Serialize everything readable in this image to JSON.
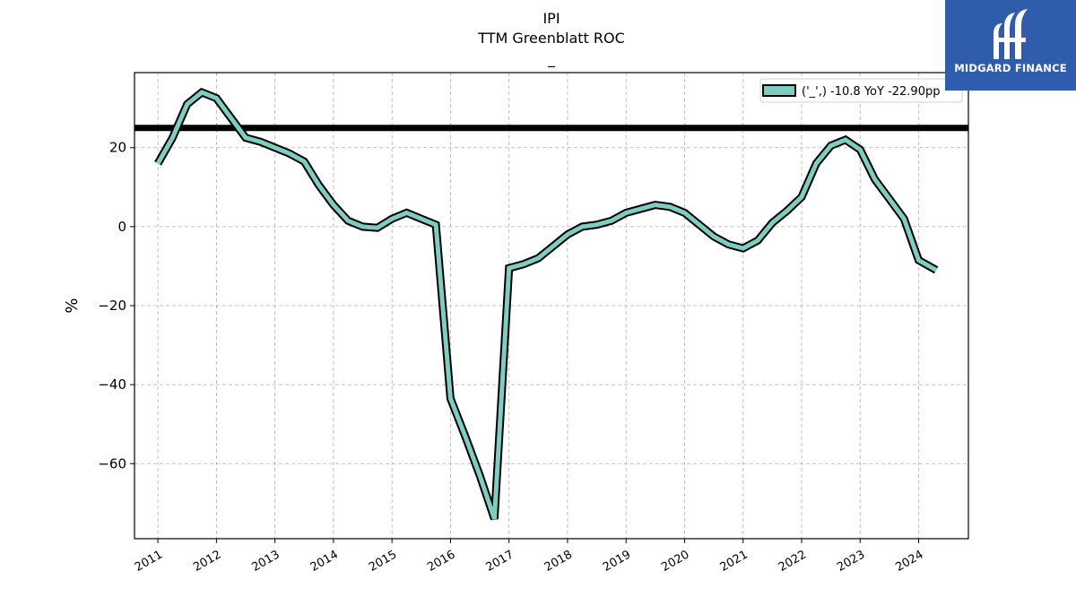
{
  "chart_data": {
    "type": "line",
    "title_lines": [
      "IPI",
      "TTM Greenblatt ROC",
      "_"
    ],
    "xlabel": "",
    "ylabel": "%",
    "xlim": [
      2010.6,
      2024.85
    ],
    "ylim": [
      -79,
      39
    ],
    "yticks": [
      20,
      0,
      -20,
      -40,
      -60
    ],
    "ytick_labels": [
      "20",
      "0",
      "−20",
      "−40",
      "−60"
    ],
    "xticks": [
      2011,
      2012,
      2013,
      2014,
      2015,
      2016,
      2017,
      2018,
      2019,
      2020,
      2021,
      2022,
      2023,
      2024
    ],
    "xtick_labels": [
      "2011",
      "2012",
      "2013",
      "2014",
      "2015",
      "2016",
      "2017",
      "2018",
      "2019",
      "2020",
      "2021",
      "2022",
      "2023",
      "2024"
    ],
    "grid": true,
    "legend_position": "top-right",
    "reference_line": {
      "y": 25,
      "color": "#000000"
    },
    "series": [
      {
        "name": "('_',) -10.8 YoY -22.90pp",
        "color": "#7fcdc0",
        "edge_color": "#000000",
        "x": [
          2011.0,
          2011.25,
          2011.5,
          2011.75,
          2012.0,
          2012.25,
          2012.5,
          2012.75,
          2013.0,
          2013.25,
          2013.5,
          2013.75,
          2014.0,
          2014.25,
          2014.5,
          2014.75,
          2015.0,
          2015.25,
          2015.5,
          2015.75,
          2016.0,
          2016.25,
          2016.5,
          2016.75,
          2017.0,
          2017.25,
          2017.5,
          2017.75,
          2018.0,
          2018.25,
          2018.5,
          2018.75,
          2019.0,
          2019.25,
          2019.5,
          2019.75,
          2020.0,
          2020.25,
          2020.5,
          2020.75,
          2021.0,
          2021.25,
          2021.5,
          2021.75,
          2022.0,
          2022.25,
          2022.5,
          2022.75,
          2023.0,
          2023.25,
          2023.5,
          2023.75,
          2024.0,
          2024.3
        ],
        "y": [
          16.0,
          22.5,
          31.0,
          34.0,
          32.5,
          27.5,
          22.5,
          21.5,
          20.0,
          18.5,
          16.5,
          10.5,
          5.5,
          1.5,
          0.0,
          -0.3,
          2.0,
          3.5,
          2.0,
          0.5,
          -43.5,
          -53.0,
          -63.0,
          -74.0,
          -10.5,
          -9.5,
          -8.0,
          -5.0,
          -2.0,
          0.0,
          0.5,
          1.5,
          3.5,
          4.5,
          5.5,
          5.0,
          3.5,
          0.5,
          -2.5,
          -4.5,
          -5.5,
          -3.5,
          1.0,
          4.0,
          7.5,
          16.0,
          20.5,
          22.0,
          19.5,
          12.0,
          7.0,
          2.0,
          -8.5,
          -11.0
        ]
      }
    ]
  },
  "logo": {
    "text": "MIDGARD FINANCE"
  }
}
